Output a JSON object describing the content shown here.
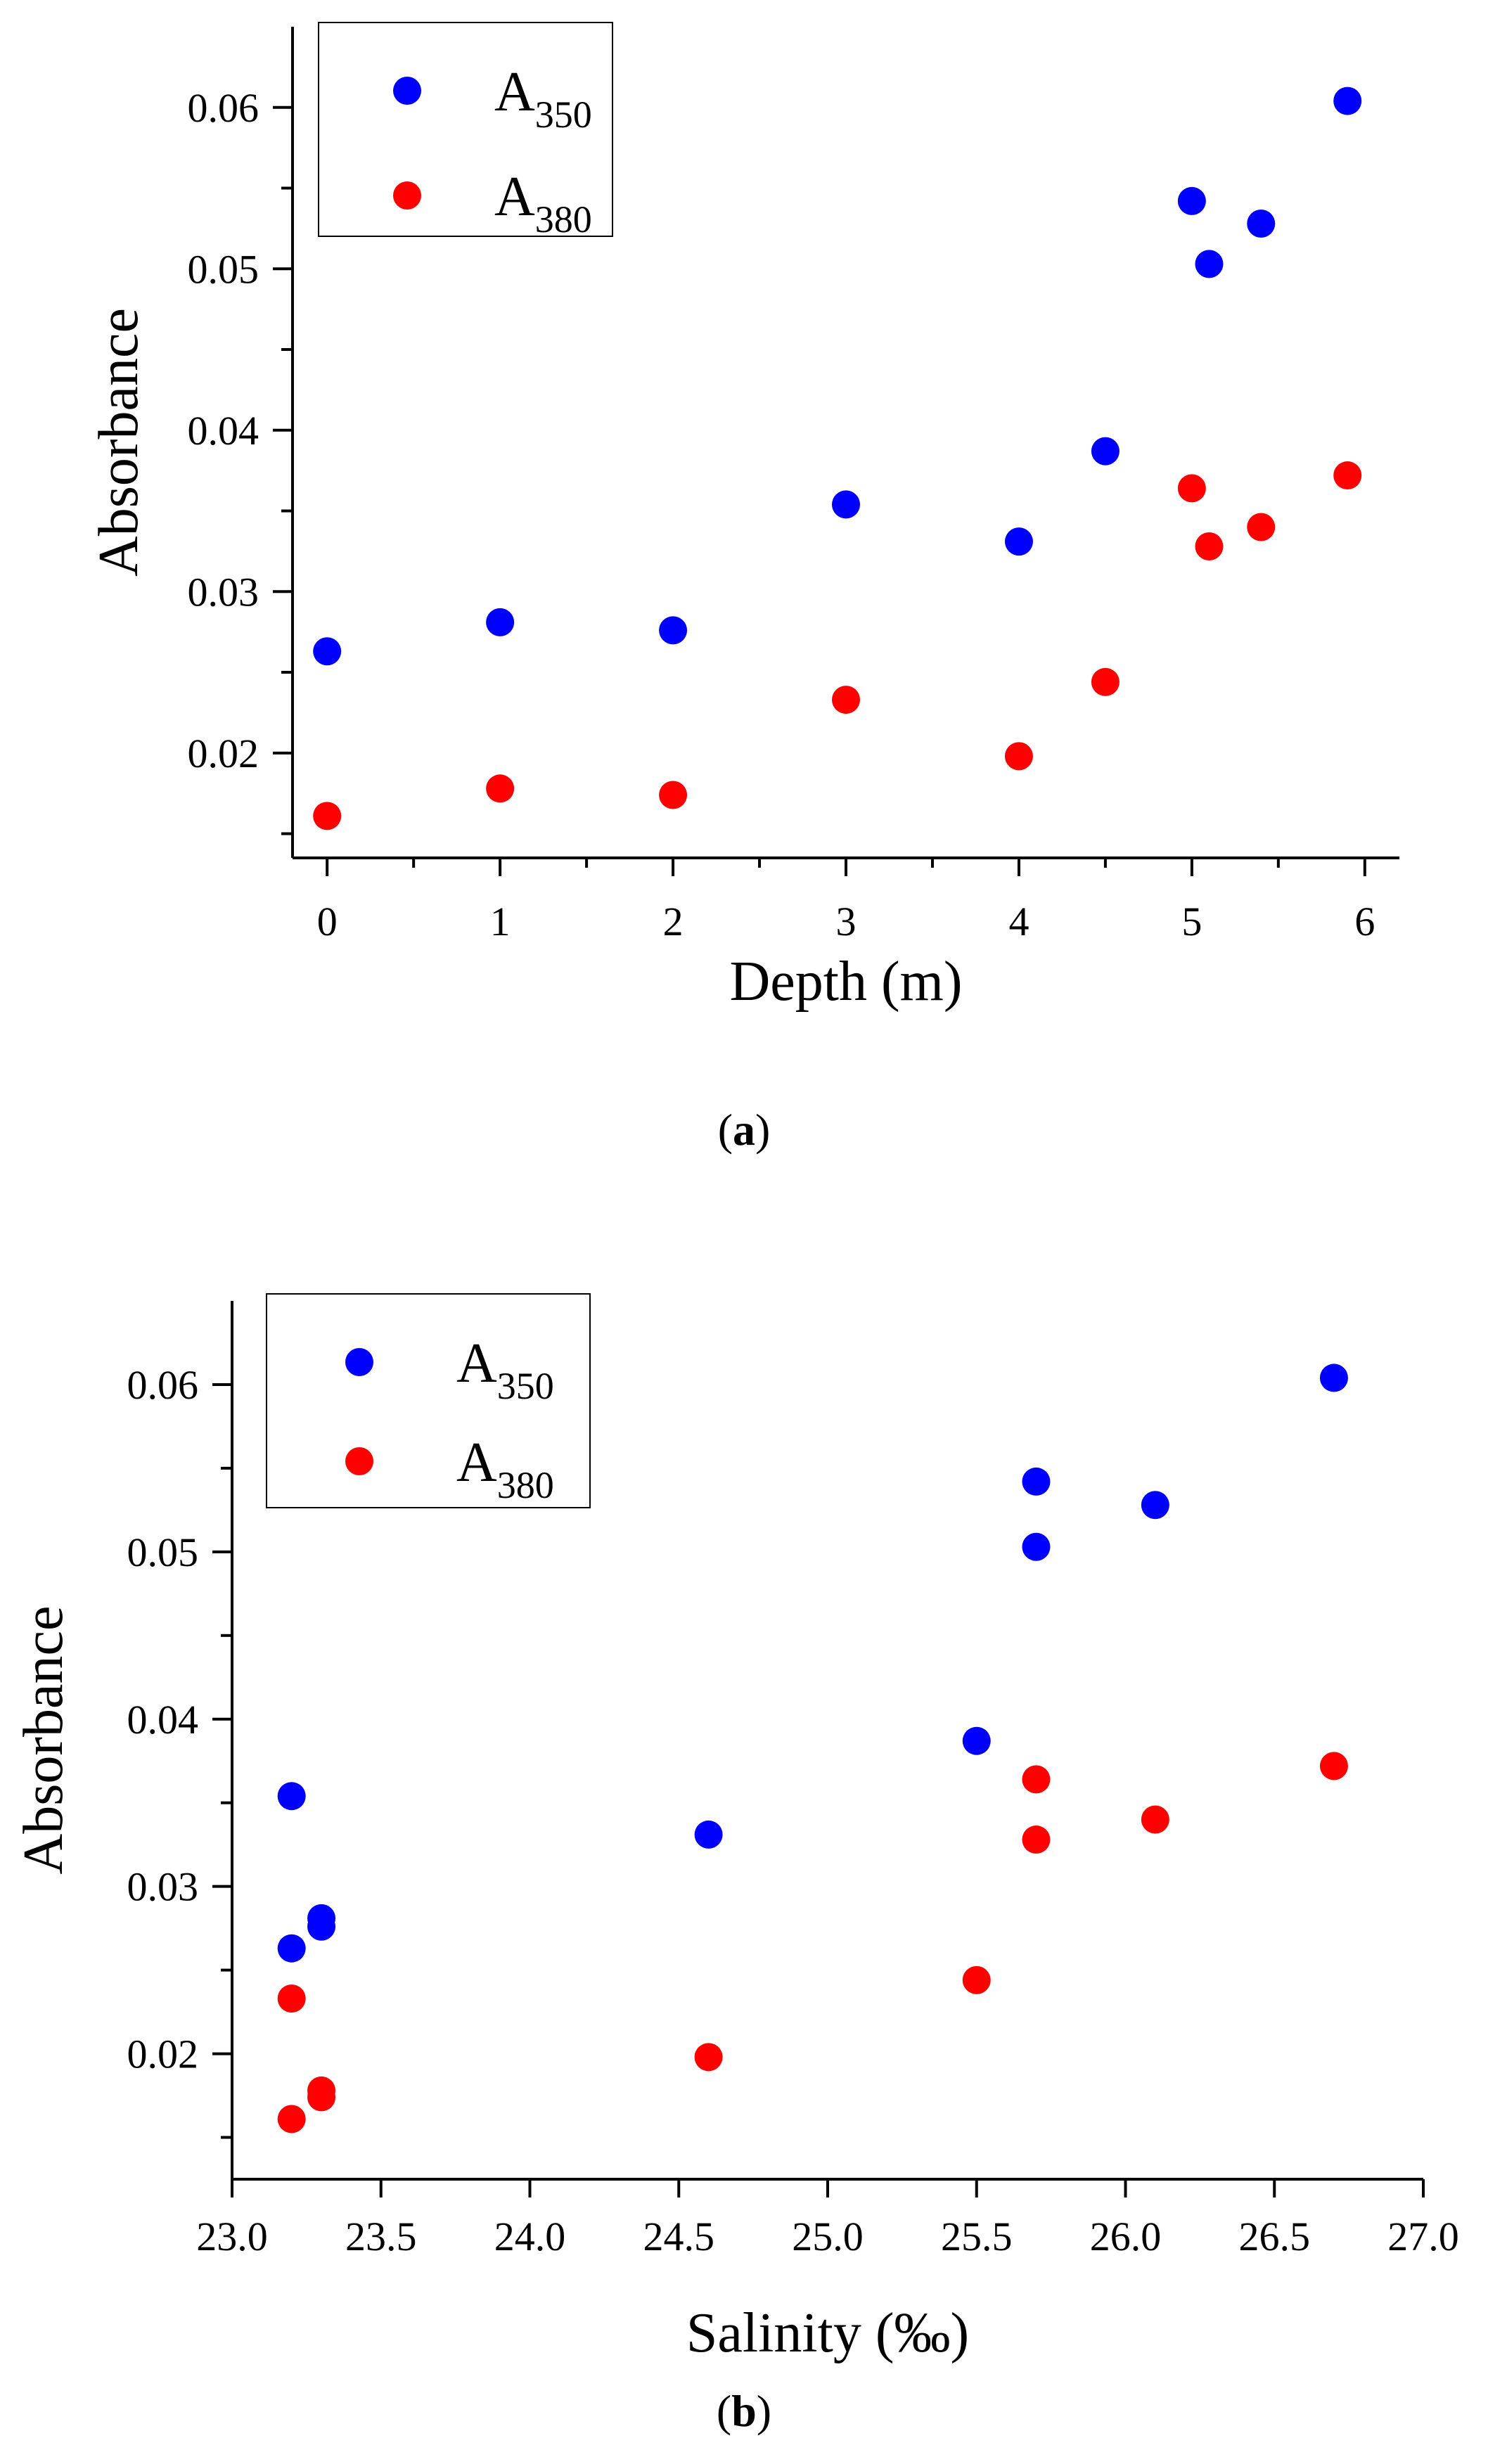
{
  "chart_data": [
    {
      "type": "scatter",
      "panel": "a",
      "title": "",
      "xlabel": "Depth (m)",
      "ylabel": "Absorbance",
      "xlim": [
        -0.2,
        6.2
      ],
      "ylim": [
        0.0135,
        0.065
      ],
      "xticks": [
        0,
        1,
        2,
        3,
        4,
        5,
        6
      ],
      "xtick_labels": [
        "0",
        "1",
        "2",
        "3",
        "4",
        "5",
        "6"
      ],
      "yticks": [
        0.02,
        0.03,
        0.04,
        0.05,
        0.06
      ],
      "ytick_labels": [
        "0.02",
        "0.03",
        "0.04",
        "0.05",
        "0.06"
      ],
      "grid": false,
      "legend_position": "top-left",
      "series": [
        {
          "name": "A350",
          "label_main": "A",
          "label_sub": "350",
          "color": "#0000ff",
          "points": [
            [
              0,
              0.0263
            ],
            [
              1,
              0.0281
            ],
            [
              2,
              0.0276
            ],
            [
              3,
              0.0354
            ],
            [
              4,
              0.0331
            ],
            [
              4.5,
              0.0387
            ],
            [
              5,
              0.0542
            ],
            [
              5.1,
              0.0503
            ],
            [
              5.4,
              0.0528
            ],
            [
              5.9,
              0.0604
            ]
          ]
        },
        {
          "name": "A380",
          "label_main": "A",
          "label_sub": "380",
          "color": "#ff0000",
          "points": [
            [
              0,
              0.0161
            ],
            [
              1,
              0.0178
            ],
            [
              2,
              0.0174
            ],
            [
              3,
              0.0233
            ],
            [
              4,
              0.0198
            ],
            [
              4.5,
              0.0244
            ],
            [
              5,
              0.0364
            ],
            [
              5.1,
              0.0328
            ],
            [
              5.4,
              0.034
            ],
            [
              5.9,
              0.0372
            ]
          ]
        }
      ]
    },
    {
      "type": "scatter",
      "panel": "b",
      "title": "",
      "xlabel": "Salinity (‰)",
      "ylabel": "Absorbance",
      "xlim": [
        23.0,
        27.0
      ],
      "ylim": [
        0.0125,
        0.065
      ],
      "xticks": [
        23.0,
        23.5,
        24.0,
        24.5,
        25.0,
        25.5,
        26.0,
        26.5,
        27.0
      ],
      "xtick_labels": [
        "23.0",
        "23.5",
        "24.0",
        "24.5",
        "25.0",
        "25.5",
        "26.0",
        "26.5",
        "27.0"
      ],
      "yticks": [
        0.02,
        0.03,
        0.04,
        0.05,
        0.06
      ],
      "ytick_labels": [
        "0.02",
        "0.03",
        "0.04",
        "0.05",
        "0.06"
      ],
      "grid": false,
      "legend_position": "top-left",
      "series": [
        {
          "name": "A350",
          "label_main": "A",
          "label_sub": "350",
          "color": "#0000ff",
          "points": [
            [
              23.2,
              0.0354
            ],
            [
              23.2,
              0.0263
            ],
            [
              23.3,
              0.0281
            ],
            [
              23.3,
              0.0276
            ],
            [
              24.6,
              0.0331
            ],
            [
              25.5,
              0.0387
            ],
            [
              25.7,
              0.0542
            ],
            [
              25.7,
              0.0503
            ],
            [
              26.1,
              0.0528
            ],
            [
              26.7,
              0.0604
            ]
          ]
        },
        {
          "name": "A380",
          "label_main": "A",
          "label_sub": "380",
          "color": "#ff0000",
          "points": [
            [
              23.2,
              0.0233
            ],
            [
              23.2,
              0.0161
            ],
            [
              23.3,
              0.0178
            ],
            [
              23.3,
              0.0174
            ],
            [
              24.6,
              0.0198
            ],
            [
              25.5,
              0.0244
            ],
            [
              25.7,
              0.0364
            ],
            [
              25.7,
              0.0328
            ],
            [
              26.1,
              0.034
            ],
            [
              26.7,
              0.0372
            ]
          ]
        }
      ]
    }
  ],
  "captions": {
    "a": {
      "open": "(",
      "letter": "a",
      "close": ")"
    },
    "b": {
      "open": "(",
      "letter": "b",
      "close": ")"
    }
  }
}
